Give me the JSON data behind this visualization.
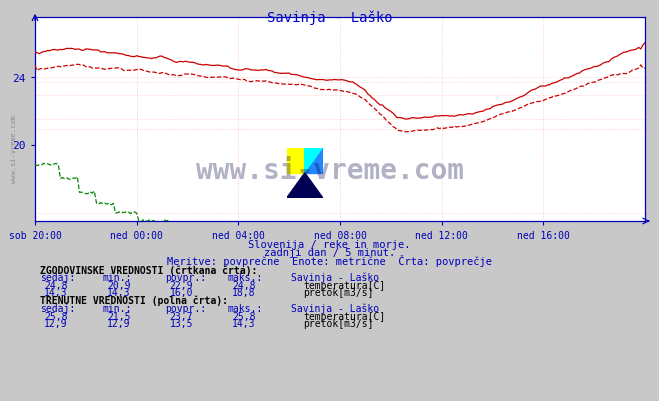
{
  "title": "Savinja - Laško",
  "title_color": "#0000cc",
  "bg_color": "#c8c8c8",
  "plot_bg_color": "#ffffff",
  "axis_color": "#0000bb",
  "text_color": "#0000bb",
  "subtitle1": "Slovenija / reke in morje.",
  "subtitle2": "zadnji dan / 5 minut.",
  "subtitle3": "Meritve: povprečne  Enote: metrične  Črta: povprečje",
  "xlabel_times": [
    "sob 20:00",
    "ned 00:00",
    "ned 04:00",
    "ned 08:00",
    "ned 12:00",
    "ned 16:00"
  ],
  "yticks": [
    20,
    24
  ],
  "n_points": 289,
  "ymin": 15.5,
  "ymax": 27.5,
  "red_color": "#cc0000",
  "green_color": "#008800",
  "grid_color": "#ffbbbb",
  "table_hist_label": "ZGODOVINSKE VREDNOSTI (črtkana črta):",
  "table_curr_label": "TRENUTNE VREDNOSTI (polna črta):",
  "col_headers": [
    "sedaj:",
    "min.:",
    "povpr.:",
    "maks.:",
    "Savinja - Laško"
  ],
  "hist_temp_row": [
    "24,8",
    "20,9",
    "22,9",
    "24,8",
    "temperatura[C]"
  ],
  "hist_flow_row": [
    "14,3",
    "14,3",
    "16,0",
    "18,8",
    "pretok[m3/s]"
  ],
  "curr_temp_row": [
    "25,8",
    "21,5",
    "23,7",
    "25,8",
    "temperatura[C]"
  ],
  "curr_flow_row": [
    "12,9",
    "12,9",
    "13,5",
    "14,3",
    "pretok[m3/s]"
  ],
  "side_text": "www.si-vreme.com"
}
